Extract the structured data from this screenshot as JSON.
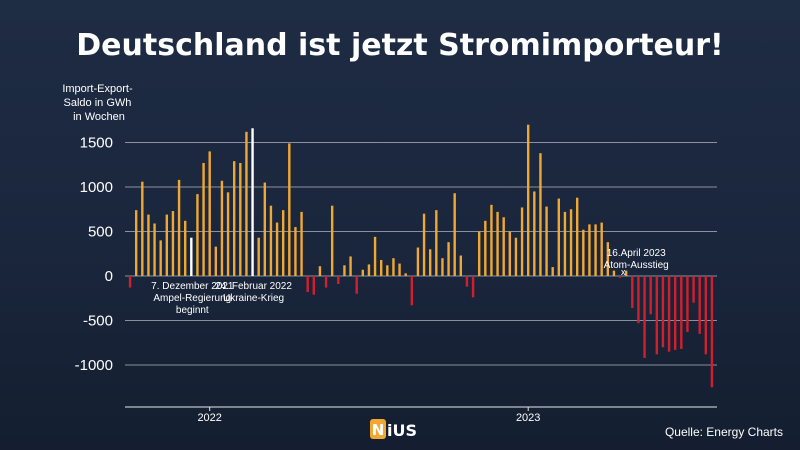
{
  "chart_data": {
    "type": "bar",
    "title": "Deutschland ist jetzt Stromimporteur!",
    "ylabel": [
      "Import-Export-",
      "Saldo in GWh",
      "in Wochen"
    ],
    "ylim": [
      -1300,
      1700
    ],
    "yticks": [
      1500,
      1000,
      500,
      0,
      -500,
      -1000
    ],
    "ytick_labels": [
      "1500",
      "1000",
      "500",
      "0",
      "-500",
      "-1000"
    ],
    "grid": true,
    "x_labels": [
      {
        "label": "2022",
        "at_index": 13
      },
      {
        "label": "2023",
        "at_index": 65
      }
    ],
    "colors": {
      "positive": "#f0a833",
      "negative": "#d21f2d",
      "highlight": "#ffffff",
      "grid": "#c8cfd8"
    },
    "values": [
      -130,
      740,
      1060,
      690,
      590,
      400,
      690,
      730,
      1080,
      620,
      430,
      920,
      1270,
      1400,
      330,
      1070,
      940,
      1290,
      1270,
      1620,
      1660,
      430,
      1050,
      790,
      600,
      740,
      1490,
      550,
      720,
      -180,
      -210,
      110,
      -130,
      790,
      -90,
      120,
      220,
      -200,
      70,
      130,
      440,
      180,
      120,
      200,
      140,
      30,
      -330,
      320,
      700,
      300,
      740,
      200,
      380,
      930,
      230,
      -120,
      -240,
      500,
      620,
      800,
      720,
      660,
      500,
      430,
      770,
      1700,
      950,
      1380,
      780,
      100,
      870,
      720,
      750,
      880,
      520,
      580,
      580,
      600,
      380,
      60,
      -20,
      60,
      -360,
      -530,
      -920,
      -430,
      -880,
      -800,
      -850,
      -830,
      -820,
      -630,
      -300,
      -650,
      -880,
      -1250
    ],
    "highlight_indices": [
      10,
      20
    ],
    "annotations": [
      {
        "at_index": 10,
        "lines": [
          "7. Dezember 2021",
          "Ampel-Regierung",
          "beginnt"
        ]
      },
      {
        "at_index": 20,
        "lines": [
          "24. Februar 2022",
          "Ukraine-Krieg"
        ]
      },
      {
        "at_index": 81,
        "lines": [
          "16.April 2023",
          "Atom-Ausstieg"
        ],
        "marker": "x"
      }
    ]
  },
  "logo": {
    "prefix": "N",
    "text": "iUS"
  },
  "source": "Quelle: Energy Charts"
}
